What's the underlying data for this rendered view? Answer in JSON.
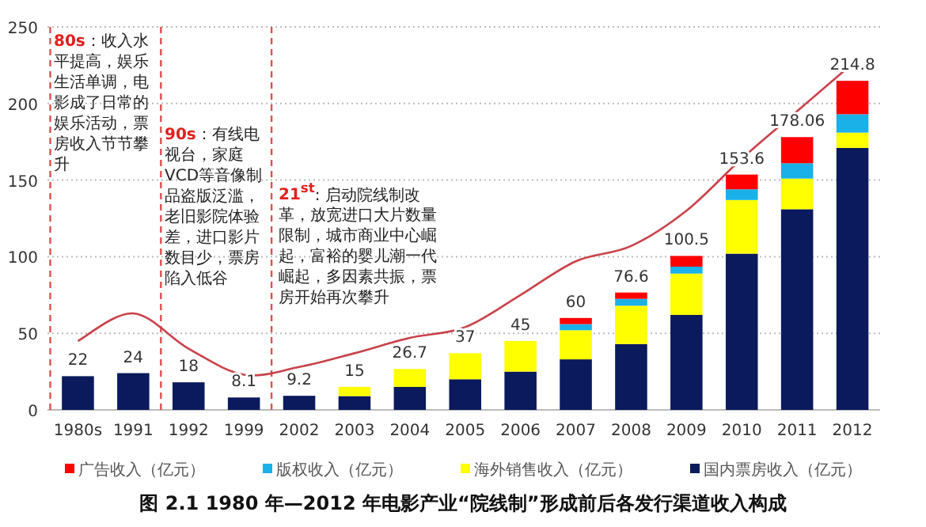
{
  "chart_data": {
    "type": "bar",
    "stacked": true,
    "title": "图 2.1 1980 年—2012 年电影产业“院线制”形成前后各发行渠道收入构成",
    "categories": [
      "1980s",
      "1991",
      "1992",
      "1999",
      "2002",
      "2003",
      "2004",
      "2005",
      "2006",
      "2007",
      "2008",
      "2009",
      "2010",
      "2011",
      "2012"
    ],
    "series": [
      {
        "name": "国内票房收入（亿元）",
        "color": "#0a1a5c",
        "values": [
          22,
          24,
          18,
          8.1,
          9.2,
          9,
          15,
          20,
          25,
          33,
          43,
          62,
          102,
          131,
          171
        ]
      },
      {
        "name": "海外销售收入（亿元）",
        "color": "#ffff00",
        "values": [
          null,
          null,
          null,
          null,
          null,
          6,
          11.7,
          17,
          20,
          19,
          25,
          27,
          35,
          20,
          10
        ]
      },
      {
        "name": "版权收入（亿元）",
        "color": "#1ab0e8",
        "values": [
          null,
          null,
          null,
          null,
          null,
          null,
          null,
          null,
          null,
          4,
          4.5,
          4.5,
          7,
          10,
          12
        ]
      },
      {
        "name": "广告收入（亿元）",
        "color": "#ff0000",
        "values": [
          null,
          null,
          null,
          null,
          null,
          null,
          null,
          null,
          null,
          4,
          4.1,
          7,
          9.6,
          17.06,
          21.8
        ]
      },
      {
        "type": "line",
        "color": "#c8424a",
        "values": [
          45,
          63,
          40,
          23,
          28,
          37,
          47,
          54,
          75,
          97,
          107,
          130,
          164,
          195,
          226
        ]
      }
    ],
    "totals": [
      "22",
      "24",
      "18",
      "8.1",
      "9.2",
      "15",
      "26.7",
      "37",
      "45",
      "60",
      "76.6",
      "100.5",
      "153.6",
      "178.06",
      "214.8"
    ],
    "ylim": [
      0,
      250
    ],
    "yticks": [
      0,
      50,
      100,
      150,
      200,
      250
    ],
    "grid": "y",
    "legend": "bottom",
    "annotations": [
      "**80s**：收入水平提高，娱乐生活单调，电影成了日常的娱乐活动，票房收入节节攀升",
      "**90s**：有线电视台，家庭VCD等音像制品盗版泛滥，老旧影院体验差，进口影片数目少，票房陷入低谷",
      "**21$^{st}$**: 启动院线制改革，放宽进口大片数量限制，城市商业中心崛起，富裕的婴儿潮一代崛起，多因素共振，票房开始再次攀升"
    ]
  }
}
